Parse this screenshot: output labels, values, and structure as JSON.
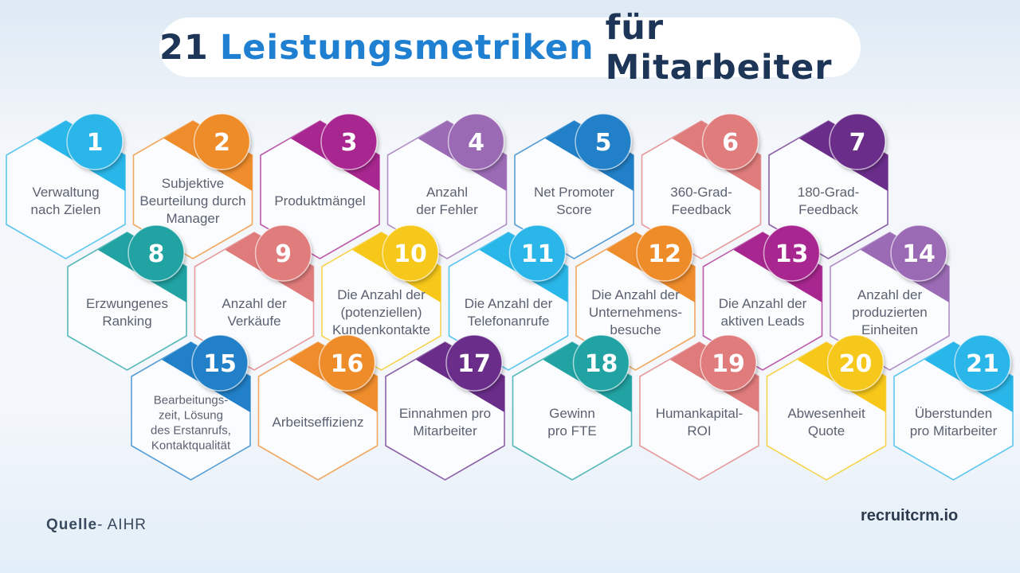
{
  "title": {
    "number": "21",
    "highlight": "Leistungsmetriken",
    "rest": "für Mitarbeiter"
  },
  "metrics": [
    {
      "num": "1",
      "lines": [
        "Verwaltung",
        "nach Zielen"
      ],
      "color": "#29b6e8"
    },
    {
      "num": "2",
      "lines": [
        "Subjektive",
        "Beurteilung durch",
        "Manager"
      ],
      "color": "#ef8c2b"
    },
    {
      "num": "3",
      "lines": [
        "Produktmängel"
      ],
      "color": "#a8268f"
    },
    {
      "num": "4",
      "lines": [
        "Anzahl",
        "der Fehler"
      ],
      "color": "#9b6bb5"
    },
    {
      "num": "5",
      "lines": [
        "Net Promoter",
        "Score"
      ],
      "color": "#2180c8"
    },
    {
      "num": "6",
      "lines": [
        "360-Grad-",
        "Feedback"
      ],
      "color": "#e07b7b"
    },
    {
      "num": "7",
      "lines": [
        "180-Grad-",
        "Feedback"
      ],
      "color": "#6a2d8a"
    },
    {
      "num": "8",
      "lines": [
        "Erzwungenes",
        "Ranking"
      ],
      "color": "#21a3a3"
    },
    {
      "num": "9",
      "lines": [
        "Anzahl der",
        "Verkäufe"
      ],
      "color": "#e07b7b"
    },
    {
      "num": "10",
      "lines": [
        "Die Anzahl der",
        "(potenziellen)",
        "Kundenkontakte"
      ],
      "color": "#f7c81a"
    },
    {
      "num": "11",
      "lines": [
        "Die Anzahl der",
        "Telefonanrufe"
      ],
      "color": "#29b6e8"
    },
    {
      "num": "12",
      "lines": [
        "Die Anzahl der",
        "Unternehmens-",
        "besuche"
      ],
      "color": "#ef8c2b"
    },
    {
      "num": "13",
      "lines": [
        "Die Anzahl der",
        "aktiven Leads"
      ],
      "color": "#a8268f"
    },
    {
      "num": "14",
      "lines": [
        "Anzahl der",
        "produzierten",
        "Einheiten"
      ],
      "color": "#9b6bb5"
    },
    {
      "num": "15",
      "lines": [
        "Bearbeitungs-",
        "zeit, Lösung",
        "des Erstanrufs,",
        "Kontaktqualität"
      ],
      "color": "#2180c8"
    },
    {
      "num": "16",
      "lines": [
        "Arbeitseffizienz"
      ],
      "color": "#ef8c2b"
    },
    {
      "num": "17",
      "lines": [
        "Einnahmen pro",
        "Mitarbeiter"
      ],
      "color": "#6a2d8a"
    },
    {
      "num": "18",
      "lines": [
        "Gewinn",
        "pro FTE"
      ],
      "color": "#21a3a3"
    },
    {
      "num": "19",
      "lines": [
        "Humankapital-",
        "ROI"
      ],
      "color": "#e07b7b"
    },
    {
      "num": "20",
      "lines": [
        "Abwesenheit",
        "Quote"
      ],
      "color": "#f7c81a"
    },
    {
      "num": "21",
      "lines": [
        "Überstunden",
        "pro Mitarbeiter"
      ],
      "color": "#29b6e8"
    }
  ],
  "footer": {
    "source_label": "Quelle",
    "source_value": "- AIHR",
    "brand": "recruitcrm.io"
  }
}
